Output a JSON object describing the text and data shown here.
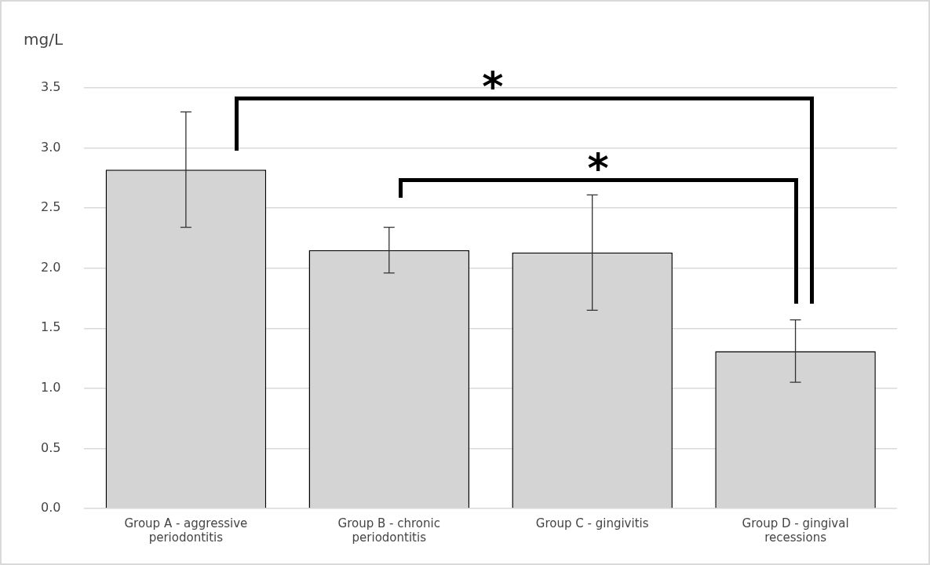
{
  "chart_data": {
    "type": "bar",
    "ylabel": "mg/L",
    "categories": [
      "Group A - aggressive periodontitis",
      "Group B - chronic periodontitis",
      "Group C - gingivitis",
      "Group D - gingival recessions"
    ],
    "values": [
      2.82,
      2.15,
      2.13,
      1.31
    ],
    "errors": [
      0.48,
      0.19,
      0.48,
      0.26
    ],
    "color": "#d4d4d4",
    "ylim": [
      0,
      3.5
    ],
    "yticks": [
      {
        "value": 0,
        "label": "0.0"
      },
      0.5,
      {
        "value": 1,
        "label": "1.0"
      },
      1.5,
      {
        "value": 2,
        "label": "2.0"
      },
      2.5,
      {
        "value": 3,
        "label": "3.0"
      },
      3.5
    ],
    "grid": "y",
    "legend": false,
    "annotations": [
      "*",
      "*"
    ]
  }
}
